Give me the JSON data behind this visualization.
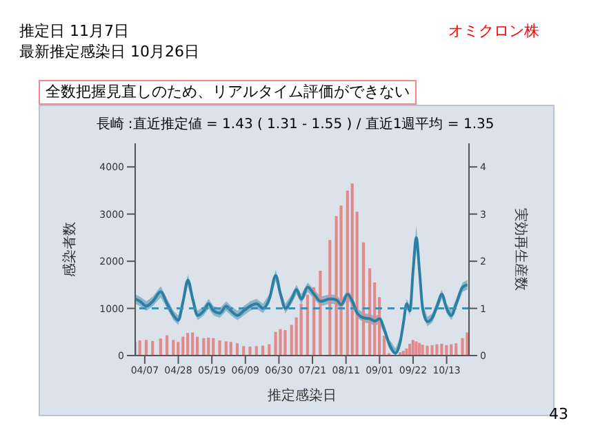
{
  "chart_data": {
    "type": "bar",
    "title": "長崎 :直近推定値 = 1.43 ( 1.31 - 1.55 ) / 直近1週平均 = 1.35",
    "xlabel": "推定感染日",
    "ylabel": "感染者数",
    "y2label": "実効再生産数",
    "annotations": [
      "推定日  11月7日",
      "最新推定感染日  10月26日",
      "オミクロン株",
      "全数把握見直しのため、リアルタイム評価ができない",
      "43"
    ],
    "x": [
      "--04-01",
      "--04-04",
      "--04-08",
      "--04-12",
      "--04-17",
      "--04-21",
      "--04-25",
      "--04-28",
      "--05-01",
      "--05-04",
      "--05-07",
      "--05-10",
      "--05-14",
      "--05-17",
      "--05-20",
      "--05-24",
      "--05-28",
      "--05-31",
      "--06-04",
      "--06-08",
      "--06-12",
      "--06-16",
      "--06-20",
      "--06-24",
      "--06-28",
      "--07-01",
      "--07-04",
      "--07-08",
      "--07-11",
      "--07-14",
      "--07-18",
      "--07-22",
      "--07-26",
      "--08-01",
      "--08-05",
      "--08-08",
      "--08-12",
      "--08-15",
      "--08-18",
      "--08-22",
      "--08-26",
      "--08-29",
      "--09-01",
      "--09-04",
      "--09-07",
      "--09-11",
      "--09-14",
      "--09-16",
      "--09-18",
      "--09-20",
      "--09-22",
      "--09-24",
      "--09-26",
      "--09-28",
      "--10-01",
      "--10-04",
      "--10-07",
      "--10-10",
      "--10-13",
      "--10-16",
      "--10-19",
      "--10-23",
      "--10-26"
    ],
    "series": [
      {
        "color": "#e08a8c",
        "values": [
          300,
          320,
          330,
          310,
          360,
          430,
          330,
          290,
          400,
          480,
          490,
          400,
          370,
          380,
          370,
          320,
          300,
          290,
          260,
          200,
          190,
          200,
          210,
          240,
          500,
          560,
          540,
          650,
          810,
          1100,
          1290,
          1450,
          1800,
          2450,
          2960,
          3180,
          3500,
          3650,
          3050,
          2400,
          1850,
          1550,
          1240,
          420,
          50,
          10,
          70,
          100,
          150,
          250,
          330,
          300,
          270,
          230,
          210,
          220,
          240,
          250,
          220,
          240,
          260,
          370,
          490
        ]
      },
      {
        "type": "line",
        "axis": "y2",
        "color": "#2b7fa3",
        "values": [
          1.2,
          1.15,
          1.05,
          1.15,
          1.35,
          1.1,
          0.85,
          0.75,
          1.15,
          1.6,
          1.2,
          0.85,
          0.95,
          1.1,
          0.95,
          0.9,
          1.05,
          0.95,
          0.85,
          0.95,
          1.05,
          1.1,
          1.0,
          1.2,
          1.7,
          1.3,
          1.0,
          1.2,
          1.4,
          1.2,
          1.45,
          1.3,
          1.15,
          1.2,
          1.18,
          1.08,
          1.3,
          1.15,
          0.9,
          0.8,
          0.78,
          0.73,
          0.78,
          0.55,
          0.25,
          0.05,
          0.3,
          0.7,
          1.1,
          0.95,
          1.8,
          2.5,
          1.8,
          1.0,
          0.72,
          0.8,
          1.05,
          1.3,
          1.0,
          0.85,
          1.1,
          1.45,
          1.5
        ],
        "lower": [
          1.1,
          1.05,
          0.95,
          1.05,
          1.23,
          1.0,
          0.75,
          0.65,
          1.05,
          1.48,
          1.1,
          0.75,
          0.85,
          1.0,
          0.85,
          0.8,
          0.95,
          0.85,
          0.75,
          0.85,
          0.95,
          1.0,
          0.9,
          1.1,
          1.58,
          1.2,
          0.9,
          1.1,
          1.3,
          1.1,
          1.35,
          1.2,
          1.05,
          1.1,
          1.08,
          0.98,
          1.2,
          1.05,
          0.8,
          0.7,
          0.68,
          0.63,
          0.68,
          0.45,
          0.15,
          0.0,
          0.2,
          0.6,
          1.0,
          0.85,
          1.6,
          2.25,
          1.6,
          0.9,
          0.62,
          0.7,
          0.95,
          1.2,
          0.9,
          0.75,
          1.0,
          1.35,
          1.4
        ],
        "upper": [
          1.3,
          1.25,
          1.15,
          1.25,
          1.47,
          1.2,
          0.95,
          0.85,
          1.25,
          1.72,
          1.3,
          0.95,
          1.05,
          1.2,
          1.05,
          1.0,
          1.15,
          1.05,
          0.95,
          1.05,
          1.15,
          1.2,
          1.1,
          1.3,
          1.82,
          1.4,
          1.1,
          1.3,
          1.5,
          1.3,
          1.55,
          1.4,
          1.25,
          1.3,
          1.28,
          1.18,
          1.4,
          1.25,
          1.0,
          0.9,
          0.88,
          0.83,
          0.88,
          0.65,
          0.35,
          0.15,
          0.4,
          0.8,
          1.2,
          1.05,
          2.0,
          2.75,
          2.0,
          1.1,
          0.82,
          0.9,
          1.15,
          1.4,
          1.1,
          0.95,
          1.2,
          1.55,
          1.6
        ]
      }
    ],
    "xlim": [
      "--04-01",
      "--10-27"
    ],
    "xticks": [
      {
        "value": "--04-07",
        "label": "04/07"
      },
      {
        "value": "--04-28",
        "label": "04/28"
      },
      {
        "value": "--05-19",
        "label": "05/19"
      },
      {
        "value": "--06-09",
        "label": "06/09"
      },
      {
        "value": "--06-30",
        "label": "06/30"
      },
      {
        "value": "--07-21",
        "label": "07/21"
      },
      {
        "value": "--08-11",
        "label": "08/11"
      },
      {
        "value": "--09-01",
        "label": "09/01"
      },
      {
        "value": "--09-22",
        "label": "09/22"
      },
      {
        "value": "--10-13",
        "label": "10/13"
      }
    ],
    "ylim": [
      0,
      4500
    ],
    "yticks": [
      0,
      1000,
      2000,
      3000,
      4000
    ],
    "y2lim": [
      0,
      4.5
    ],
    "y2ticks": [
      0,
      1,
      2,
      3,
      4
    ],
    "ref_lines": [
      {
        "axis": "y2",
        "value": 1,
        "color": "#3f8fb3",
        "line_style": "dashed"
      }
    ],
    "grid": false,
    "legend": false
  }
}
